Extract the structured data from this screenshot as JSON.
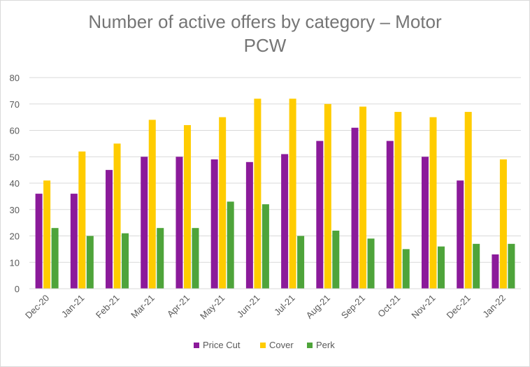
{
  "chart_data": {
    "type": "bar",
    "title_line1": "Number of active offers by category – Motor",
    "title_line2": "PCW",
    "xlabel": "",
    "ylabel": "",
    "ylim": [
      0,
      80
    ],
    "yticks": [
      0,
      10,
      20,
      30,
      40,
      50,
      60,
      70,
      80
    ],
    "grid": true,
    "legend_position": "bottom",
    "categories": [
      "Dec-20",
      "Jan-21",
      "Feb-21",
      "Mar-21",
      "Apr-21",
      "May-21",
      "Jun-21",
      "Jul-21",
      "Aug-21",
      "Sep-21",
      "Oct-21",
      "Nov-21",
      "Dec-21",
      "Jan-22"
    ],
    "series": [
      {
        "name": "Price Cut",
        "color": "#8b1a9a",
        "values": [
          36,
          36,
          45,
          50,
          50,
          49,
          48,
          51,
          56,
          61,
          56,
          50,
          41,
          13
        ]
      },
      {
        "name": "Cover",
        "color": "#ffcc00",
        "values": [
          41,
          52,
          55,
          64,
          62,
          65,
          72,
          72,
          70,
          69,
          67,
          65,
          67,
          49
        ]
      },
      {
        "name": "Perk",
        "color": "#4ea43a",
        "values": [
          23,
          20,
          21,
          23,
          23,
          33,
          32,
          20,
          22,
          19,
          15,
          16,
          17,
          17
        ]
      }
    ]
  }
}
